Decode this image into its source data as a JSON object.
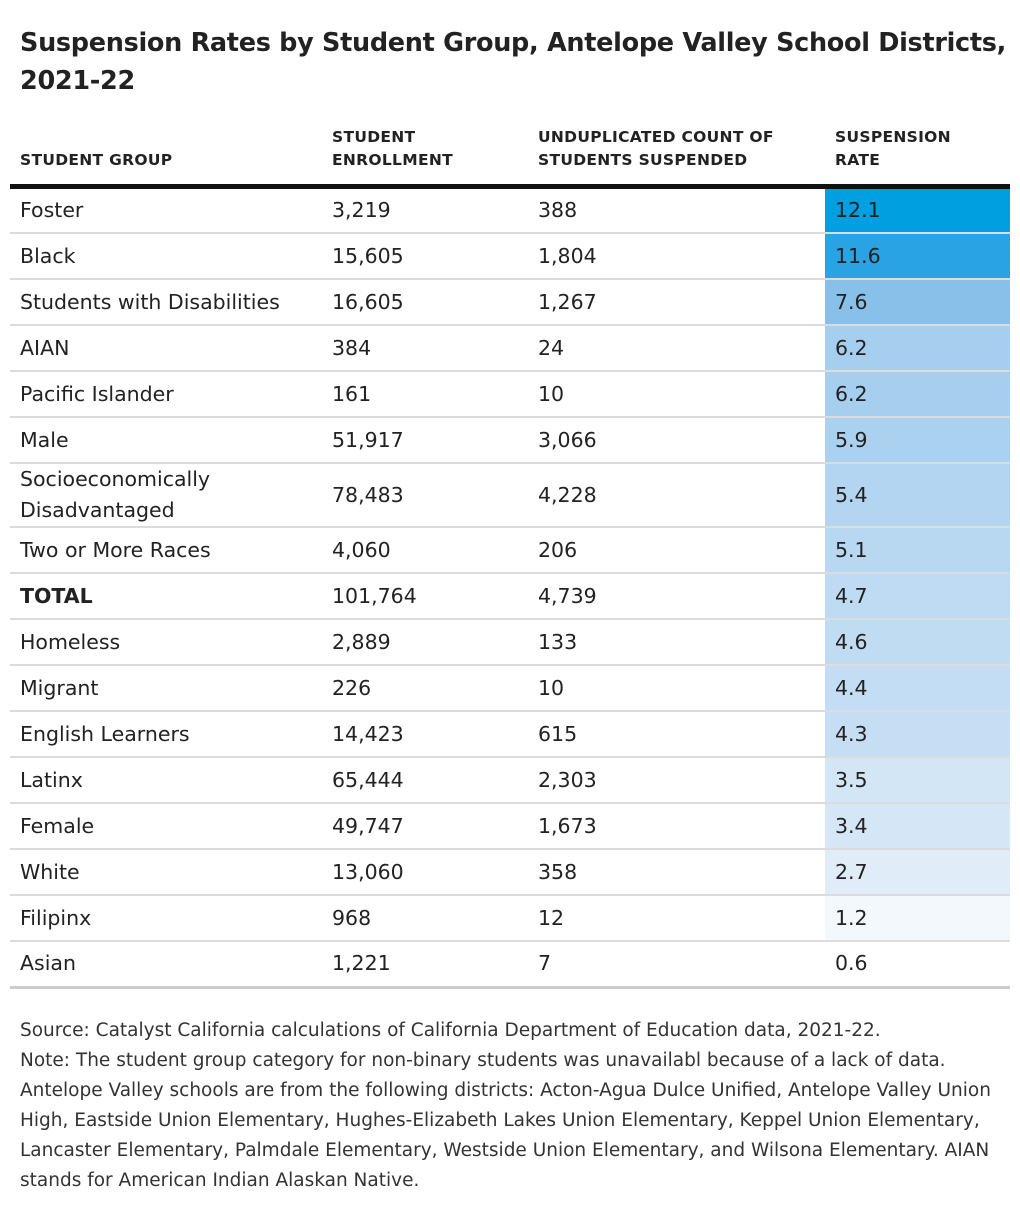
{
  "title": "Suspension Rates by Student Group, Antelope Valley School Districts, 2021-22",
  "chart_data": {
    "type": "table",
    "title": "Suspension Rates by Student Group, Antelope Valley School Districts, 2021-22",
    "columns": [
      "STUDENT GROUP",
      "STUDENT ENROLLMENT",
      "UNDUPLICATED COUNT OF STUDENTS SUSPENDED",
      "SUSPENSION RATE"
    ],
    "rows": [
      {
        "group": "Foster",
        "enrollment": "3,219",
        "suspended": "388",
        "rate": "12.1",
        "rate_value": 12.1,
        "color": "#009fdf"
      },
      {
        "group": "Black",
        "enrollment": "15,605",
        "suspended": "1,804",
        "rate": "11.6",
        "rate_value": 11.6,
        "color": "#29a3e3"
      },
      {
        "group": "Students with Disabilities",
        "enrollment": "16,605",
        "suspended": "1,267",
        "rate": "7.6",
        "rate_value": 7.6,
        "color": "#87c1ea"
      },
      {
        "group": "AIAN",
        "enrollment": "384",
        "suspended": "24",
        "rate": "6.2",
        "rate_value": 6.2,
        "color": "#a6cfef"
      },
      {
        "group": "Pacific Islander",
        "enrollment": "161",
        "suspended": "10",
        "rate": "6.2",
        "rate_value": 6.2,
        "color": "#a6cfef"
      },
      {
        "group": "Male",
        "enrollment": "51,917",
        "suspended": "3,066",
        "rate": "5.9",
        "rate_value": 5.9,
        "color": "#abd1f0"
      },
      {
        "group": "Socioeconomically Disadvantaged",
        "enrollment": "78,483",
        "suspended": "4,228",
        "rate": "5.4",
        "rate_value": 5.4,
        "color": "#b3d5f1"
      },
      {
        "group": "Two or More Races",
        "enrollment": "4,060",
        "suspended": "206",
        "rate": "5.1",
        "rate_value": 5.1,
        "color": "#b8d8f2"
      },
      {
        "group": "TOTAL",
        "enrollment": "101,764",
        "suspended": "4,739",
        "rate": "4.7",
        "rate_value": 4.7,
        "color": "#bfdbf3"
      },
      {
        "group": "Homeless",
        "enrollment": "2,889",
        "suspended": "133",
        "rate": "4.6",
        "rate_value": 4.6,
        "color": "#c0dcf3"
      },
      {
        "group": "Migrant",
        "enrollment": "226",
        "suspended": "10",
        "rate": "4.4",
        "rate_value": 4.4,
        "color": "#c3ddf4"
      },
      {
        "group": "English Learners",
        "enrollment": "14,423",
        "suspended": "615",
        "rate": "4.3",
        "rate_value": 4.3,
        "color": "#c5def4"
      },
      {
        "group": "Latinx",
        "enrollment": "65,444",
        "suspended": "2,303",
        "rate": "3.5",
        "rate_value": 3.5,
        "color": "#d3e6f6"
      },
      {
        "group": "Female",
        "enrollment": "49,747",
        "suspended": "1,673",
        "rate": "3.4",
        "rate_value": 3.4,
        "color": "#d5e7f7"
      },
      {
        "group": "White",
        "enrollment": "13,060",
        "suspended": "358",
        "rate": "2.7",
        "rate_value": 2.7,
        "color": "#e0edf9"
      },
      {
        "group": "Filipinx",
        "enrollment": "968",
        "suspended": "12",
        "rate": "1.2",
        "rate_value": 1.2,
        "color": "#f3f8fc"
      },
      {
        "group": "Asian",
        "enrollment": "1,221",
        "suspended": "7",
        "rate": "0.6",
        "rate_value": 0.6,
        "color": "#ffffff"
      }
    ]
  },
  "notes": {
    "source": "Source: Catalyst California calculations of California Department of Education data, 2021-22.",
    "note": "Note: The student group category for non-binary students was unavailabl because of a lack of data. Antelope Valley schools are from the following districts: Acton-Agua Dulce Unified, Antelope Valley Union High, Eastside Union Elementary, Hughes-Elizabeth Lakes Union Elementary, Keppel Union Elementary, Lancaster Elementary, Palmdale Elementary, Westside Union Elementary, and Wilsona Elementary. AIAN stands for American Indian Alaskan Native."
  }
}
